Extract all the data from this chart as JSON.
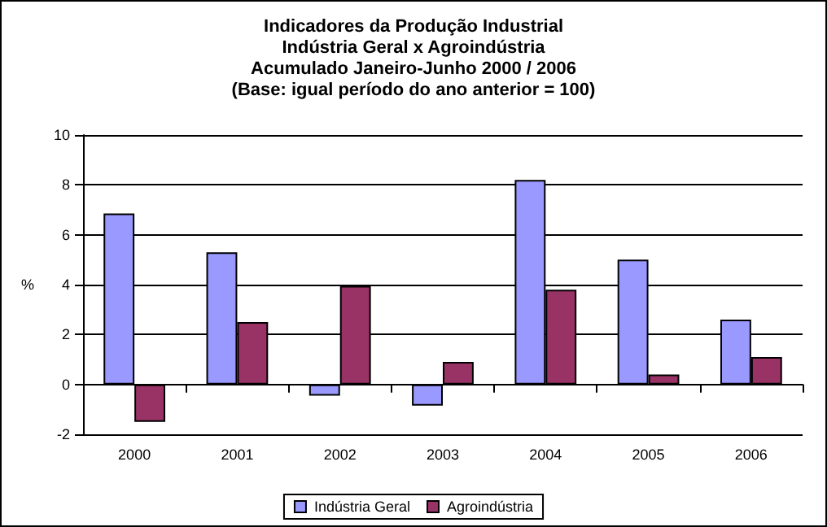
{
  "chart_data": {
    "type": "bar",
    "title": "Indicadores da Produção Industrial\nIndústria Geral x Agroindústria\nAcumulado Janeiro-Junho 2000 / 2006\n(Base: igual período do ano anterior = 100)",
    "ylabel": "%",
    "categories": [
      "2000",
      "2001",
      "2002",
      "2003",
      "2004",
      "2005",
      "2006"
    ],
    "series": [
      {
        "name": "Indústria Geral",
        "color": "#9999ff",
        "values": [
          6.85,
          5.3,
          -0.45,
          -0.85,
          8.2,
          5.0,
          2.6
        ]
      },
      {
        "name": "Agroindústria",
        "color": "#993366",
        "values": [
          -1.5,
          2.5,
          3.95,
          0.9,
          3.8,
          0.4,
          1.1
        ]
      }
    ],
    "ylim": [
      -2,
      10
    ],
    "yticks": [
      -2,
      0,
      2,
      4,
      6,
      8,
      10
    ],
    "grid": "y",
    "legend": "bottom"
  }
}
